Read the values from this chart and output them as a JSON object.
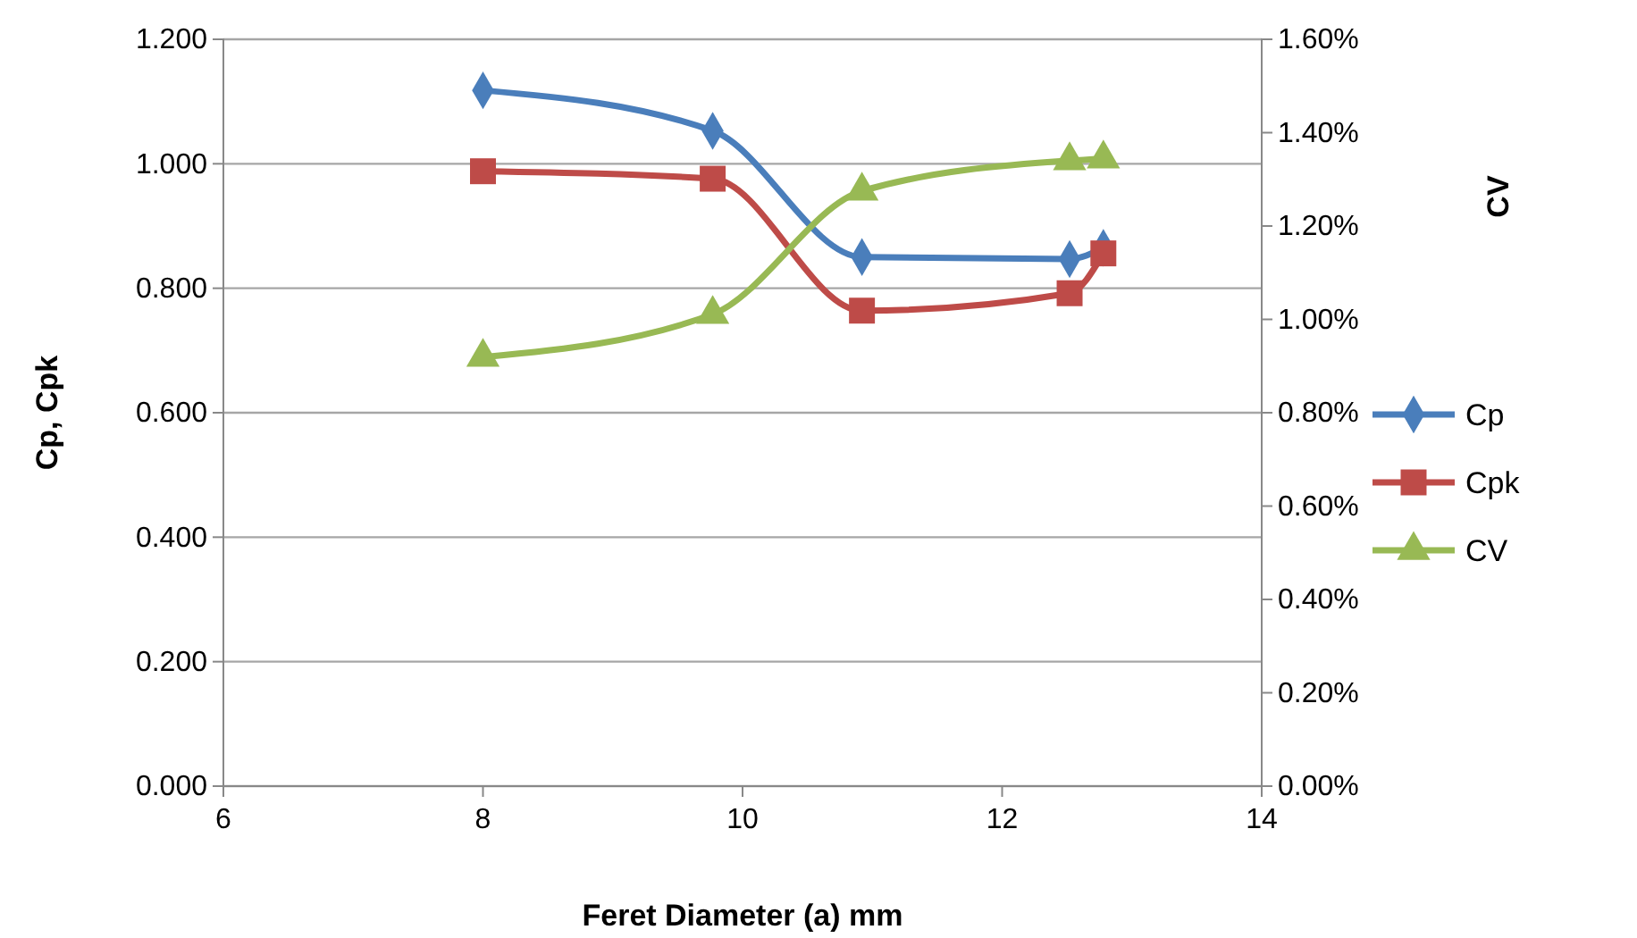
{
  "chart_data": {
    "type": "line",
    "xlabel": "Feret Diameter (a) mm",
    "ylabel": "Cp, Cpk",
    "y2label": "CV",
    "x": [
      8.0,
      9.77,
      10.92,
      12.52,
      12.78
    ],
    "series": [
      {
        "name": "Cp",
        "color": "#4a7ebb",
        "marker": "diamond",
        "values": [
          1.118,
          1.053,
          0.85,
          0.847,
          0.865
        ]
      },
      {
        "name": "Cpk",
        "color": "#be4b48",
        "marker": "square",
        "values": [
          0.988,
          0.976,
          0.764,
          0.792,
          0.856
        ]
      },
      {
        "name": "CV",
        "color": "#98b954",
        "marker": "triangle",
        "axis": "y2",
        "values": [
          0.919,
          1.011,
          1.275,
          1.34,
          1.344
        ]
      }
    ],
    "xlim": [
      6,
      14
    ],
    "xticks": [
      6,
      8,
      10,
      12,
      14
    ],
    "ylim": [
      0,
      1.2
    ],
    "yticks": [
      {
        "value": 0,
        "label": "0.000"
      },
      {
        "value": 0.2,
        "label": "0.200"
      },
      {
        "value": 0.4,
        "label": "0.400"
      },
      {
        "value": 0.6,
        "label": "0.600"
      },
      {
        "value": 0.8,
        "label": "0.800"
      },
      {
        "value": 1,
        "label": "1.000"
      },
      {
        "value": 1.2,
        "label": "1.200"
      }
    ],
    "y2lim": [
      0,
      1.6
    ],
    "y2ticks": [
      {
        "value": 0,
        "label": "0.00%"
      },
      {
        "value": 0.2,
        "label": "0.20%"
      },
      {
        "value": 0.4,
        "label": "0.40%"
      },
      {
        "value": 0.6,
        "label": "0.60%"
      },
      {
        "value": 0.8,
        "label": "0.80%"
      },
      {
        "value": 1,
        "label": "1.00%"
      },
      {
        "value": 1.2,
        "label": "1.20%"
      },
      {
        "value": 1.4,
        "label": "1.40%"
      },
      {
        "value": 1.6,
        "label": "1.60%"
      }
    ],
    "grid": "y",
    "legend": "right"
  }
}
